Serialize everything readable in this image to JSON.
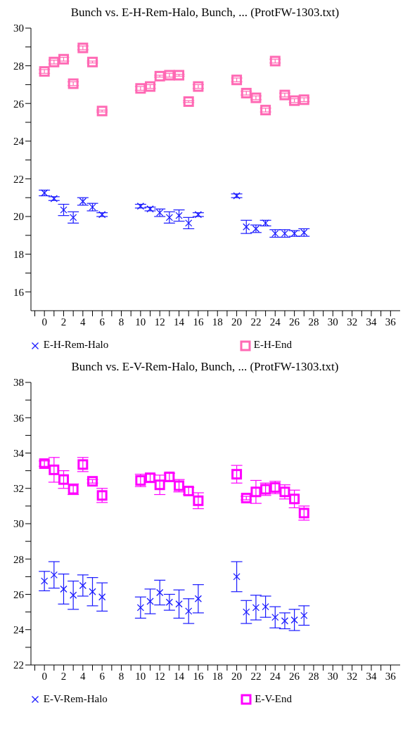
{
  "chart_data": [
    {
      "type": "scatter",
      "title": "Bunch vs. E-H-Rem-Halo, Bunch, ... (ProtFW-1303.txt)",
      "x": [
        0,
        1,
        2,
        3,
        4,
        5,
        6,
        10,
        11,
        12,
        13,
        14,
        15,
        16,
        20,
        21,
        22,
        23,
        24,
        25,
        26,
        27
      ],
      "series": [
        {
          "name": "E-H-Rem-Halo",
          "color": "#1a1aff",
          "marker": "cross",
          "values": [
            21.25,
            20.95,
            20.35,
            19.95,
            20.8,
            20.5,
            20.1,
            20.55,
            20.4,
            20.2,
            19.95,
            20.05,
            19.65,
            20.1,
            21.1,
            19.45,
            19.35,
            19.65,
            19.1,
            19.1,
            19.1,
            19.15
          ],
          "errors": [
            0.15,
            0.1,
            0.3,
            0.3,
            0.2,
            0.2,
            0.1,
            0.1,
            0.1,
            0.2,
            0.3,
            0.3,
            0.3,
            0.1,
            0.1,
            0.35,
            0.2,
            0.15,
            0.2,
            0.2,
            0.15,
            0.2
          ]
        },
        {
          "name": "E-H-End",
          "color": "#ff69b4",
          "marker": "square",
          "values": [
            27.7,
            28.2,
            28.35,
            27.05,
            28.95,
            28.2,
            25.6,
            26.8,
            26.9,
            27.45,
            27.5,
            27.5,
            26.1,
            26.9,
            27.25,
            26.55,
            26.3,
            25.65,
            28.25,
            26.45,
            26.15,
            26.2
          ],
          "errors": [
            0.1,
            0.1,
            0.1,
            0.1,
            0.1,
            0.05,
            0.05,
            0.1,
            0.1,
            0.05,
            0.1,
            0.05,
            0.05,
            0.1,
            0.1,
            0.1,
            0.1,
            0.1,
            0.1,
            0.1,
            0.1,
            0.1
          ]
        }
      ],
      "xlim": [
        -1.4,
        37
      ],
      "xticks": [
        {
          "value": -1,
          "label": null
        },
        0,
        {
          "value": 1,
          "label": null
        },
        2,
        {
          "value": 3,
          "label": null
        },
        4,
        {
          "value": 5,
          "label": null
        },
        6,
        {
          "value": 7,
          "label": null
        },
        8,
        {
          "value": 9,
          "label": null
        },
        10,
        {
          "value": 11,
          "label": null
        },
        12,
        {
          "value": 13,
          "label": null
        },
        14,
        {
          "value": 15,
          "label": null
        },
        16,
        {
          "value": 17,
          "label": null
        },
        18,
        {
          "value": 19,
          "label": null
        },
        20,
        {
          "value": 21,
          "label": null
        },
        22,
        {
          "value": 23,
          "label": null
        },
        24,
        {
          "value": 25,
          "label": null
        },
        26,
        {
          "value": 27,
          "label": null
        },
        28,
        {
          "value": 29,
          "label": null
        },
        30,
        {
          "value": 31,
          "label": null
        },
        32,
        {
          "value": 33,
          "label": null
        },
        34,
        {
          "value": 35,
          "label": null
        },
        36
      ],
      "ylim": [
        15,
        30
      ],
      "yticks": [
        16,
        {
          "value": 17,
          "label": null
        },
        18,
        {
          "value": 19,
          "label": null
        },
        20,
        {
          "value": 21,
          "label": null
        },
        22,
        {
          "value": 23,
          "label": null
        },
        24,
        {
          "value": 25,
          "label": null
        },
        26,
        {
          "value": 27,
          "label": null
        },
        28,
        {
          "value": 29,
          "label": null
        },
        30
      ],
      "grid": false,
      "legend": "bottom"
    },
    {
      "type": "scatter",
      "title": "Bunch vs. E-V-Rem-Halo, Bunch, ... (ProtFW-1303.txt)",
      "x": [
        0,
        1,
        2,
        3,
        4,
        5,
        6,
        10,
        11,
        12,
        13,
        14,
        15,
        16,
        20,
        21,
        22,
        23,
        24,
        25,
        26,
        27
      ],
      "series": [
        {
          "name": "E-V-Rem-Halo",
          "color": "#1a1aff",
          "marker": "cross",
          "values": [
            26.75,
            27.1,
            26.3,
            25.95,
            26.5,
            26.15,
            25.85,
            25.25,
            25.6,
            26.1,
            25.55,
            25.45,
            25.05,
            25.75,
            27.0,
            25.0,
            25.25,
            25.3,
            24.7,
            24.5,
            24.55,
            24.8
          ],
          "errors": [
            0.55,
            0.75,
            0.85,
            0.8,
            0.6,
            0.8,
            0.8,
            0.6,
            0.7,
            0.7,
            0.45,
            0.8,
            0.7,
            0.8,
            0.85,
            0.65,
            0.7,
            0.6,
            0.6,
            0.45,
            0.6,
            0.55
          ]
        },
        {
          "name": "E-V-End",
          "color": "#ff00ff",
          "marker": "square",
          "values": [
            33.4,
            33.05,
            32.5,
            31.95,
            33.35,
            32.4,
            31.6,
            32.45,
            32.6,
            32.2,
            32.65,
            32.15,
            31.85,
            31.3,
            32.8,
            31.45,
            31.8,
            31.95,
            32.05,
            31.8,
            31.4,
            30.6
          ],
          "errors": [
            0.15,
            0.7,
            0.5,
            0.3,
            0.4,
            0.1,
            0.4,
            0.35,
            0.2,
            0.55,
            0.2,
            0.35,
            0.2,
            0.45,
            0.5,
            0.1,
            0.65,
            0.35,
            0.35,
            0.4,
            0.5,
            0.4
          ]
        }
      ],
      "xlim": [
        -1.4,
        37
      ],
      "xticks": [
        {
          "value": -1,
          "label": null
        },
        0,
        {
          "value": 1,
          "label": null
        },
        2,
        {
          "value": 3,
          "label": null
        },
        4,
        {
          "value": 5,
          "label": null
        },
        6,
        {
          "value": 7,
          "label": null
        },
        8,
        {
          "value": 9,
          "label": null
        },
        10,
        {
          "value": 11,
          "label": null
        },
        12,
        {
          "value": 13,
          "label": null
        },
        14,
        {
          "value": 15,
          "label": null
        },
        16,
        {
          "value": 17,
          "label": null
        },
        18,
        {
          "value": 19,
          "label": null
        },
        20,
        {
          "value": 21,
          "label": null
        },
        22,
        {
          "value": 23,
          "label": null
        },
        24,
        {
          "value": 25,
          "label": null
        },
        26,
        {
          "value": 27,
          "label": null
        },
        28,
        {
          "value": 29,
          "label": null
        },
        30,
        {
          "value": 31,
          "label": null
        },
        32,
        {
          "value": 33,
          "label": null
        },
        34,
        {
          "value": 35,
          "label": null
        },
        36
      ],
      "ylim": [
        22,
        38
      ],
      "yticks": [
        22,
        {
          "value": 23,
          "label": null
        },
        24,
        {
          "value": 25,
          "label": null
        },
        26,
        {
          "value": 27,
          "label": null
        },
        28,
        {
          "value": 29,
          "label": null
        },
        30,
        {
          "value": 31,
          "label": null
        },
        32,
        {
          "value": 33,
          "label": null
        },
        34,
        {
          "value": 35,
          "label": null
        },
        36,
        {
          "value": 37,
          "label": null
        },
        38
      ],
      "grid": false,
      "legend": "bottom"
    }
  ]
}
